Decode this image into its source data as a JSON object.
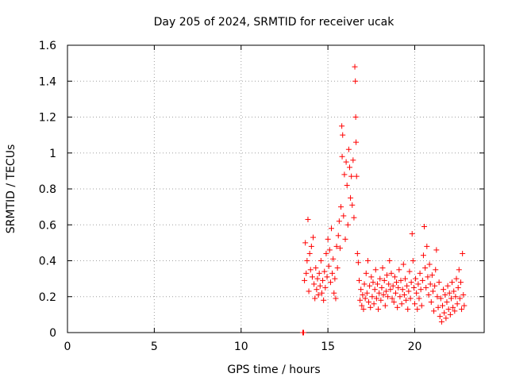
{
  "chart_data": {
    "type": "scatter",
    "title": "Day 205 of 2024, SRMTID for receiver ucak",
    "xlabel": "GPS time / hours",
    "ylabel": "SRMTID / TECUs",
    "xlim": [
      0,
      24
    ],
    "ylim": [
      0,
      1.6
    ],
    "xticks": [
      0,
      5,
      10,
      15,
      20
    ],
    "xtick_labels": [
      "0",
      "5",
      "10",
      "15",
      "20"
    ],
    "yticks": [
      0,
      0.2,
      0.4,
      0.6,
      0.8,
      1.0,
      1.2,
      1.4,
      1.6
    ],
    "ytick_labels": [
      "0",
      "0.2",
      "0.4",
      "0.6",
      "0.8",
      "1",
      "1.2",
      "1.4",
      "1.6"
    ],
    "grid": true,
    "marker": "+",
    "color": "#ff0000",
    "series": [
      {
        "name": "SRMTID",
        "points": [
          [
            13.55,
            0.0
          ],
          [
            13.6,
            0.0
          ],
          [
            13.65,
            0.29
          ],
          [
            13.7,
            0.5
          ],
          [
            13.75,
            0.33
          ],
          [
            13.8,
            0.4
          ],
          [
            13.85,
            0.63
          ],
          [
            13.9,
            0.23
          ],
          [
            13.95,
            0.44
          ],
          [
            14.0,
            0.35
          ],
          [
            14.05,
            0.48
          ],
          [
            14.1,
            0.31
          ],
          [
            14.15,
            0.53
          ],
          [
            14.2,
            0.27
          ],
          [
            14.25,
            0.19
          ],
          [
            14.3,
            0.36
          ],
          [
            14.35,
            0.24
          ],
          [
            14.4,
            0.3
          ],
          [
            14.45,
            0.21
          ],
          [
            14.5,
            0.33
          ],
          [
            14.55,
            0.26
          ],
          [
            14.6,
            0.4
          ],
          [
            14.65,
            0.22
          ],
          [
            14.7,
            0.29
          ],
          [
            14.75,
            0.18
          ],
          [
            14.8,
            0.34
          ],
          [
            14.85,
            0.25
          ],
          [
            14.9,
            0.44
          ],
          [
            14.95,
            0.31
          ],
          [
            15.0,
            0.52
          ],
          [
            15.05,
            0.37
          ],
          [
            15.1,
            0.46
          ],
          [
            15.15,
            0.28
          ],
          [
            15.2,
            0.58
          ],
          [
            15.25,
            0.33
          ],
          [
            15.3,
            0.41
          ],
          [
            15.35,
            0.22
          ],
          [
            15.4,
            0.3
          ],
          [
            15.45,
            0.19
          ],
          [
            15.5,
            0.48
          ],
          [
            15.55,
            0.36
          ],
          [
            15.6,
            0.54
          ],
          [
            15.65,
            0.62
          ],
          [
            15.7,
            0.47
          ],
          [
            15.75,
            0.7
          ],
          [
            15.8,
            1.15
          ],
          [
            15.82,
            0.98
          ],
          [
            15.85,
            1.1
          ],
          [
            15.9,
            0.65
          ],
          [
            15.95,
            0.88
          ],
          [
            16.0,
            0.52
          ],
          [
            16.05,
            0.95
          ],
          [
            16.1,
            0.82
          ],
          [
            16.15,
            0.6
          ],
          [
            16.2,
            1.02
          ],
          [
            16.25,
            0.92
          ],
          [
            16.3,
            0.75
          ],
          [
            16.35,
            0.87
          ],
          [
            16.4,
            0.71
          ],
          [
            16.45,
            0.96
          ],
          [
            16.5,
            0.64
          ],
          [
            16.55,
            1.48
          ],
          [
            16.58,
            1.4
          ],
          [
            16.6,
            1.2
          ],
          [
            16.62,
            1.06
          ],
          [
            16.65,
            0.87
          ],
          [
            16.7,
            0.44
          ],
          [
            16.75,
            0.39
          ],
          [
            16.8,
            0.29
          ],
          [
            16.85,
            0.18
          ],
          [
            16.9,
            0.24
          ],
          [
            16.95,
            0.15
          ],
          [
            17.0,
            0.21
          ],
          [
            17.05,
            0.13
          ],
          [
            17.1,
            0.27
          ],
          [
            17.15,
            0.19
          ],
          [
            17.2,
            0.33
          ],
          [
            17.25,
            0.22
          ],
          [
            17.3,
            0.4
          ],
          [
            17.35,
            0.17
          ],
          [
            17.4,
            0.26
          ],
          [
            17.45,
            0.14
          ],
          [
            17.5,
            0.31
          ],
          [
            17.55,
            0.2
          ],
          [
            17.6,
            0.28
          ],
          [
            17.65,
            0.16
          ],
          [
            17.7,
            0.24
          ],
          [
            17.75,
            0.35
          ],
          [
            17.8,
            0.19
          ],
          [
            17.85,
            0.27
          ],
          [
            17.9,
            0.13
          ],
          [
            17.95,
            0.22
          ],
          [
            18.0,
            0.3
          ],
          [
            18.05,
            0.18
          ],
          [
            18.1,
            0.25
          ],
          [
            18.15,
            0.36
          ],
          [
            18.2,
            0.21
          ],
          [
            18.25,
            0.29
          ],
          [
            18.3,
            0.15
          ],
          [
            18.35,
            0.23
          ],
          [
            18.4,
            0.32
          ],
          [
            18.45,
            0.2
          ],
          [
            18.5,
            0.27
          ],
          [
            18.55,
            0.4
          ],
          [
            18.6,
            0.24
          ],
          [
            18.65,
            0.33
          ],
          [
            18.7,
            0.19
          ],
          [
            18.75,
            0.26
          ],
          [
            18.8,
            0.17
          ],
          [
            18.85,
            0.31
          ],
          [
            18.9,
            0.22
          ],
          [
            18.95,
            0.28
          ],
          [
            19.0,
            0.14
          ],
          [
            19.05,
            0.25
          ],
          [
            19.1,
            0.35
          ],
          [
            19.15,
            0.2
          ],
          [
            19.2,
            0.29
          ],
          [
            19.25,
            0.16
          ],
          [
            19.3,
            0.24
          ],
          [
            19.35,
            0.38
          ],
          [
            19.4,
            0.21
          ],
          [
            19.45,
            0.3
          ],
          [
            19.5,
            0.18
          ],
          [
            19.55,
            0.26
          ],
          [
            19.6,
            0.13
          ],
          [
            19.65,
            0.23
          ],
          [
            19.7,
            0.34
          ],
          [
            19.75,
            0.19
          ],
          [
            19.8,
            0.28
          ],
          [
            19.85,
            0.55
          ],
          [
            19.9,
            0.4
          ],
          [
            19.95,
            0.25
          ],
          [
            20.0,
            0.16
          ],
          [
            20.05,
            0.3
          ],
          [
            20.1,
            0.22
          ],
          [
            20.15,
            0.13
          ],
          [
            20.2,
            0.27
          ],
          [
            20.25,
            0.19
          ],
          [
            20.3,
            0.33
          ],
          [
            20.35,
            0.24
          ],
          [
            20.4,
            0.15
          ],
          [
            20.45,
            0.29
          ],
          [
            20.5,
            0.43
          ],
          [
            20.55,
            0.59
          ],
          [
            20.6,
            0.36
          ],
          [
            20.65,
            0.25
          ],
          [
            20.7,
            0.48
          ],
          [
            20.75,
            0.31
          ],
          [
            20.8,
            0.21
          ],
          [
            20.85,
            0.38
          ],
          [
            20.9,
            0.27
          ],
          [
            20.95,
            0.17
          ],
          [
            21.0,
            0.32
          ],
          [
            21.05,
            0.23
          ],
          [
            21.1,
            0.12
          ],
          [
            21.15,
            0.26
          ],
          [
            21.2,
            0.35
          ],
          [
            21.25,
            0.46
          ],
          [
            21.3,
            0.2
          ],
          [
            21.35,
            0.14
          ],
          [
            21.4,
            0.28
          ],
          [
            21.45,
            0.09
          ],
          [
            21.5,
            0.19
          ],
          [
            21.55,
            0.06
          ],
          [
            21.6,
            0.15
          ],
          [
            21.65,
            0.24
          ],
          [
            21.7,
            0.11
          ],
          [
            21.75,
            0.21
          ],
          [
            21.8,
            0.08
          ],
          [
            21.85,
            0.17
          ],
          [
            21.9,
            0.26
          ],
          [
            21.95,
            0.13
          ],
          [
            22.0,
            0.22
          ],
          [
            22.05,
            0.1
          ],
          [
            22.1,
            0.19
          ],
          [
            22.15,
            0.28
          ],
          [
            22.2,
            0.14
          ],
          [
            22.25,
            0.23
          ],
          [
            22.3,
            0.12
          ],
          [
            22.35,
            0.2
          ],
          [
            22.4,
            0.3
          ],
          [
            22.45,
            0.16
          ],
          [
            22.5,
            0.25
          ],
          [
            22.55,
            0.35
          ],
          [
            22.6,
            0.19
          ],
          [
            22.65,
            0.28
          ],
          [
            22.7,
            0.13
          ],
          [
            22.75,
            0.44
          ],
          [
            22.8,
            0.21
          ],
          [
            22.85,
            0.15
          ]
        ]
      }
    ]
  }
}
